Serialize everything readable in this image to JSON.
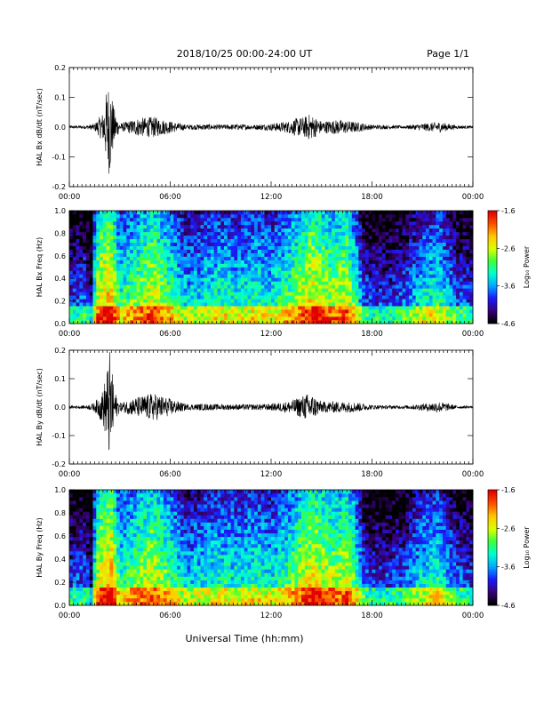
{
  "header": {
    "title": "2018/10/25  00:00-24:00 UT",
    "page": "Page 1/1"
  },
  "footer": {
    "xlabel": "Universal Time (hh:mm)"
  },
  "time_ticks": [
    "00:00",
    "06:00",
    "12:00",
    "18:00",
    "00:00"
  ],
  "colorbar": {
    "label": "Log₁₀ Power",
    "ticks": [
      "-1.6",
      "-2.6",
      "-3.6",
      "-4.6"
    ],
    "colors": [
      "#000000",
      "#3a007a",
      "#1a1aff",
      "#00a8ff",
      "#00ffd2",
      "#3cff3c",
      "#dcff00",
      "#ffc800",
      "#ff5000",
      "#e00000"
    ]
  },
  "chart_data": [
    {
      "type": "line",
      "ylabel": "HAL Bx dB/dt (nT/sec)",
      "xlim": [
        0,
        24
      ],
      "ylim": [
        -0.2,
        0.2
      ],
      "yticks": [
        "0.2",
        "0.1",
        "0.0",
        "-0.1",
        "-0.2"
      ],
      "envelope_hours": [
        0,
        1,
        1.5,
        2,
        2.2,
        2.4,
        2.6,
        2.8,
        3,
        3.5,
        4,
        5,
        6,
        7,
        8,
        9,
        10,
        11,
        12,
        13,
        13.5,
        14,
        14.3,
        15,
        16,
        17,
        18,
        19,
        20,
        21,
        22,
        23,
        24
      ],
      "envelope_amp": [
        0.005,
        0.006,
        0.012,
        0.05,
        0.12,
        0.17,
        0.08,
        0.04,
        0.012,
        0.02,
        0.03,
        0.035,
        0.02,
        0.008,
        0.01,
        0.008,
        0.01,
        0.008,
        0.012,
        0.02,
        0.03,
        0.035,
        0.045,
        0.02,
        0.025,
        0.018,
        0.008,
        0.006,
        0.005,
        0.012,
        0.018,
        0.006,
        0.004
      ]
    },
    {
      "type": "heatmap",
      "ylabel": "HAL Bx Freq (Hz)",
      "xlim": [
        0,
        24
      ],
      "ylim": [
        0,
        1.0
      ],
      "yticks": [
        "1.0",
        "0.8",
        "0.6",
        "0.4",
        "0.2",
        "0.0"
      ],
      "zlim": [
        -4.6,
        -1.6
      ]
    },
    {
      "type": "line",
      "ylabel": "HAL By dB/dt (nT/sec)",
      "xlim": [
        0,
        24
      ],
      "ylim": [
        -0.2,
        0.2
      ],
      "yticks": [
        "0.2",
        "0.1",
        "0.0",
        "-0.1",
        "-0.2"
      ],
      "envelope_hours": [
        0,
        1,
        1.5,
        2,
        2.2,
        2.4,
        2.6,
        2.8,
        3,
        3.5,
        4,
        5,
        6,
        7,
        8,
        9,
        10,
        11,
        12,
        13,
        13.5,
        14,
        14.3,
        15,
        16,
        17,
        18,
        19,
        20,
        21,
        22,
        23,
        24
      ],
      "envelope_amp": [
        0.005,
        0.006,
        0.015,
        0.06,
        0.12,
        0.2,
        0.1,
        0.04,
        0.015,
        0.025,
        0.035,
        0.05,
        0.03,
        0.01,
        0.012,
        0.01,
        0.01,
        0.01,
        0.012,
        0.02,
        0.03,
        0.045,
        0.05,
        0.02,
        0.02,
        0.018,
        0.008,
        0.006,
        0.006,
        0.012,
        0.02,
        0.006,
        0.004
      ]
    },
    {
      "type": "heatmap",
      "ylabel": "HAL By Freq (Hz)",
      "xlim": [
        0,
        24
      ],
      "ylim": [
        0,
        1.0
      ],
      "yticks": [
        "1.0",
        "0.8",
        "0.6",
        "0.4",
        "0.2",
        "0.0"
      ],
      "zlim": [
        -4.6,
        -1.6
      ]
    }
  ]
}
